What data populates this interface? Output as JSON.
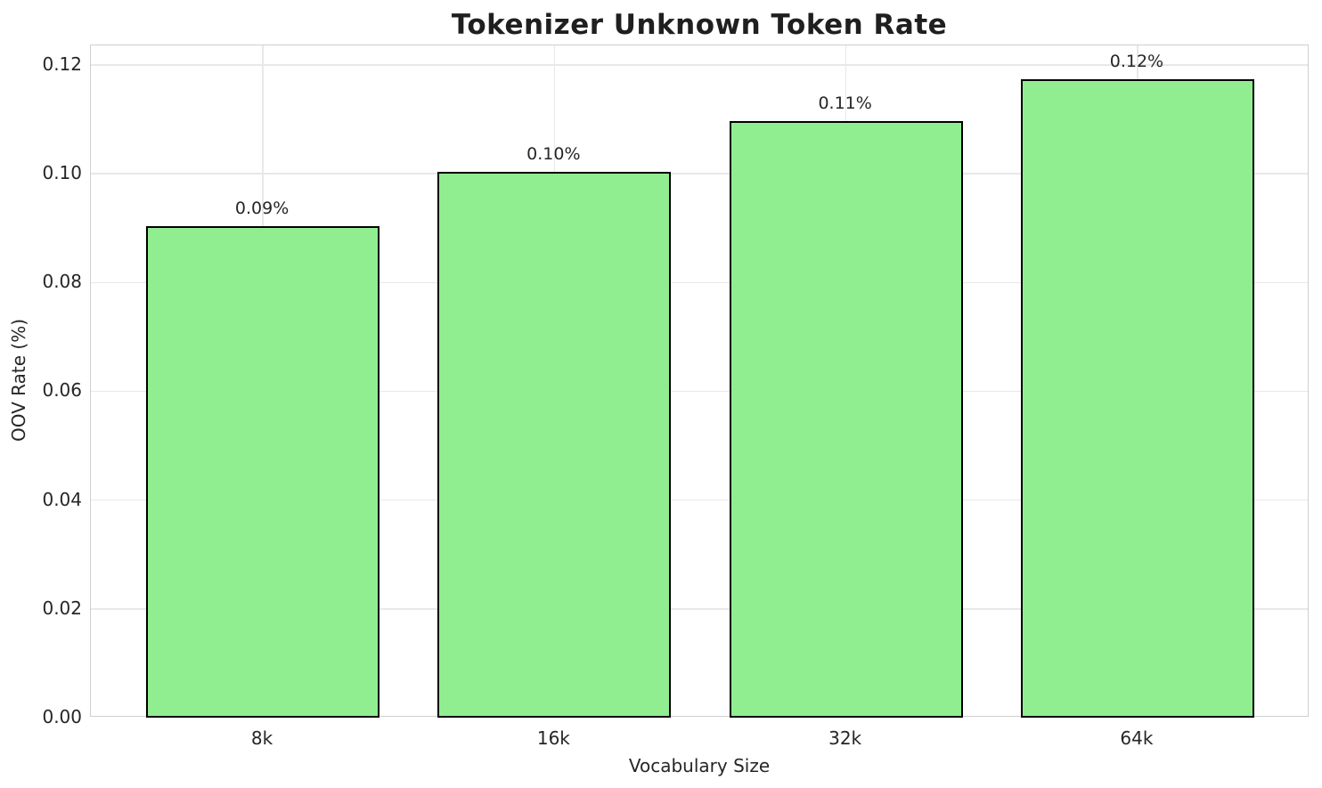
{
  "chart_data": {
    "type": "bar",
    "title": "Tokenizer Unknown Token Rate",
    "xlabel": "Vocabulary Size",
    "ylabel": "OOV Rate (%)",
    "categories": [
      "8k",
      "16k",
      "32k",
      "64k"
    ],
    "values": [
      0.0904,
      0.1004,
      0.1097,
      0.1174
    ],
    "bar_labels": [
      "0.09%",
      "0.10%",
      "0.11%",
      "0.12%"
    ],
    "ylim": [
      0,
      0.1236
    ],
    "yticks": [
      0.0,
      0.02,
      0.04,
      0.06,
      0.08,
      0.1,
      0.12
    ],
    "ytick_labels": [
      "0.00",
      "0.02",
      "0.04",
      "0.06",
      "0.08",
      "0.10",
      "0.12"
    ],
    "bar_width_fraction": 0.8,
    "grid": true,
    "legend": "none",
    "colors": {
      "bar_fill": "#90EE90",
      "bar_edge": "#000000",
      "grid_line": "#e8e8e8",
      "spine": "#cfcfcf",
      "text": "#262626",
      "background": "#ffffff"
    }
  }
}
